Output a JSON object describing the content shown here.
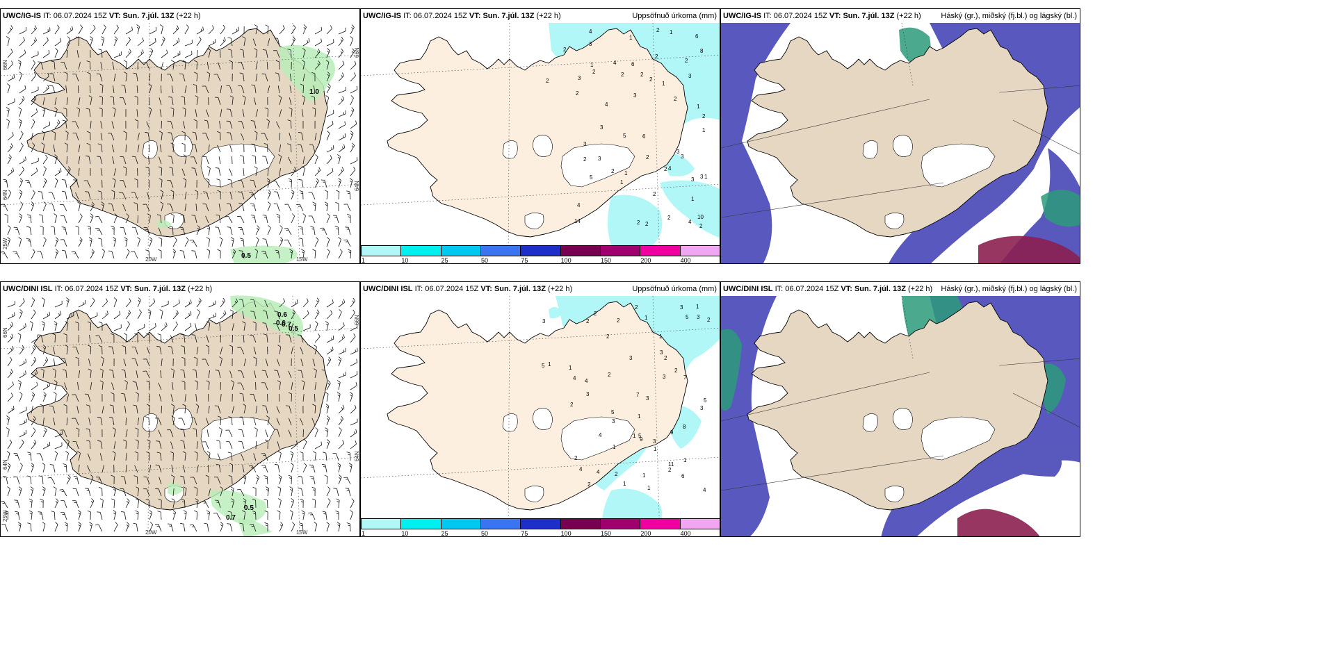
{
  "rows": [
    {
      "model": "UWC/IG-IS",
      "it_label": "IT:",
      "it_value": "06.07.2024 15Z",
      "vt_label": "VT:",
      "vt_value": "Sun. 7.júl. 13Z",
      "lead": "(+22 h)",
      "wind_labels": [
        "1.0",
        "0.5"
      ],
      "precip_values": [
        "2",
        "1",
        "2",
        "2",
        "3",
        "3",
        "3",
        "2",
        "3",
        "2",
        "2",
        "3",
        "2",
        "5",
        "5",
        "3",
        "4",
        "4",
        "10",
        "6",
        "3",
        "1",
        "2",
        "2",
        "8",
        "14",
        "2",
        "1",
        "1",
        "2",
        "3",
        "3",
        "2",
        "2",
        "2",
        "1",
        "1",
        "2",
        "2",
        "1",
        "1",
        "4",
        "4",
        "3",
        "2",
        "2",
        "2",
        "1",
        "2",
        "2",
        "4",
        "6",
        "1",
        "6",
        "4",
        "3"
      ]
    },
    {
      "model": "UWC/DINI ISL",
      "it_label": "IT:",
      "it_value": "06.07.2024 15Z",
      "vt_label": "VT:",
      "vt_value": "Sun. 7.júl. 13Z",
      "lead": "(+22 h)",
      "wind_labels": [
        "0.6",
        "0.6",
        "0.7",
        "0.5",
        "0.5",
        "0.7"
      ],
      "precip_values": [
        "1",
        "2",
        "2",
        "1",
        "2",
        "1",
        "3",
        "3",
        "3",
        "4",
        "5",
        "5",
        "5",
        "3",
        "3",
        "5",
        "9",
        "7",
        "11",
        "9",
        "2",
        "2",
        "3",
        "2",
        "2",
        "4",
        "1",
        "2",
        "1",
        "1",
        "1",
        "4",
        "2",
        "2",
        "2",
        "1",
        "5",
        "3",
        "2",
        "7",
        "2",
        "1",
        "1",
        "8",
        "1",
        "1",
        "1",
        "3",
        "4",
        "3",
        "4",
        "3",
        "3",
        "4",
        "6",
        "2"
      ]
    }
  ],
  "precip_title": "Uppsöfnuð úrkoma (mm)",
  "cloud_title": "Háský (gr.), miðský (fj.bl.) og lágský (bl.)",
  "grid_labels": {
    "lat_66": "66N",
    "lat_64": "64N",
    "lat_64_right": "64N",
    "lat_66_right": "66N",
    "lon_25": "25W",
    "lon_20": "20W",
    "lon_15": "15W"
  },
  "colorbar": {
    "ticks": [
      "1",
      "10",
      "25",
      "50",
      "75",
      "100",
      "150",
      "200",
      "400"
    ],
    "colors": [
      "#b2f7f7",
      "#00f0f0",
      "#00c8f0",
      "#3a74f0",
      "#1e2ec8",
      "#780050",
      "#a0006e",
      "#f000a0",
      "#f0a6f0"
    ]
  },
  "colors": {
    "land": "#e6d7c3",
    "land_precip": "#fcefe0",
    "ice": "#ffffff",
    "precip_light": "#b2f7f7",
    "wind_green": "#b8edb8",
    "cloud_low": "#4a4ab8",
    "cloud_mid": "#2c9a7a",
    "cloud_high": "#8b2050"
  }
}
